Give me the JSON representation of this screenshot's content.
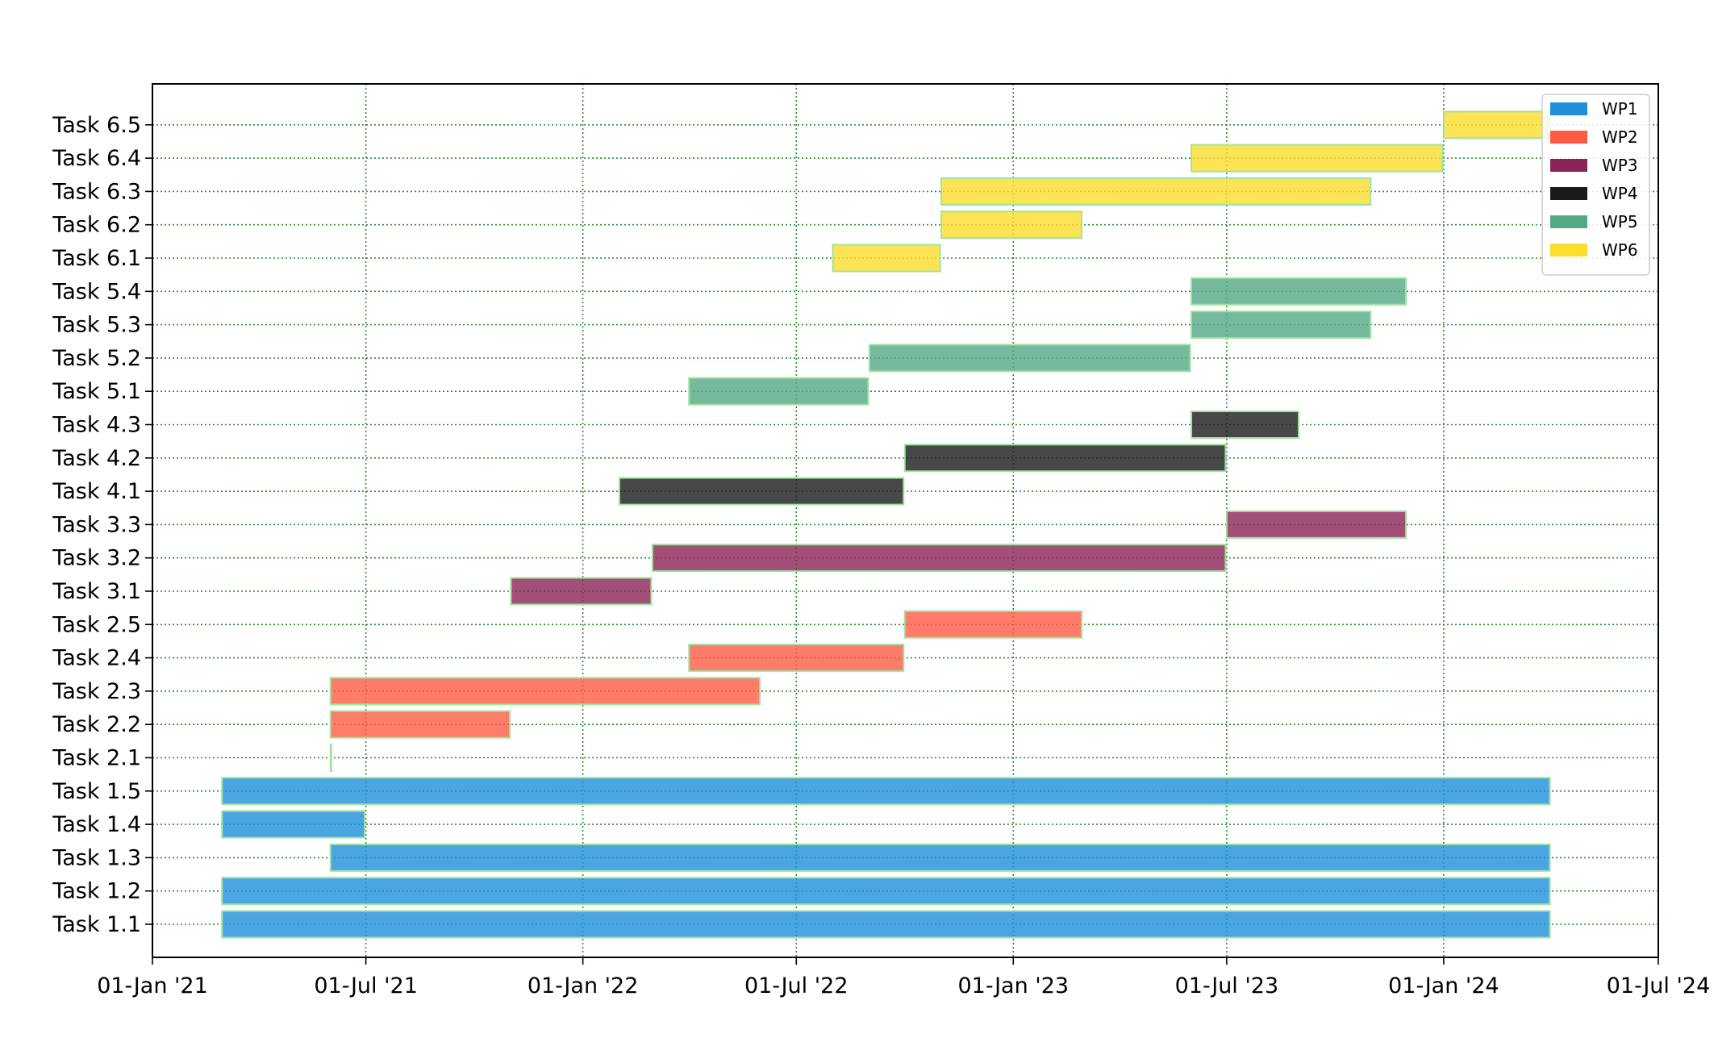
{
  "chart_data": {
    "type": "gantt",
    "title": "",
    "xlabel": "",
    "ylabel": "",
    "x_axis": {
      "type": "date",
      "range": [
        "2021-01-01",
        "2024-07-01"
      ],
      "ticks": [
        {
          "date": "2021-01-01",
          "label": "01-Jan '21"
        },
        {
          "date": "2021-07-01",
          "label": "01-Jul '21"
        },
        {
          "date": "2022-01-01",
          "label": "01-Jan '22"
        },
        {
          "date": "2022-07-01",
          "label": "01-Jul '22"
        },
        {
          "date": "2023-01-01",
          "label": "01-Jan '23"
        },
        {
          "date": "2023-07-01",
          "label": "01-Jul '23"
        },
        {
          "date": "2024-01-01",
          "label": "01-Jan '24"
        },
        {
          "date": "2024-07-01",
          "label": "01-Jul '24"
        }
      ]
    },
    "grid": {
      "vertical": true,
      "horizontal": true,
      "style": "dotted",
      "color": "#2e8b2e"
    },
    "legend": {
      "placement": "top-right"
    },
    "work_packages": [
      {
        "name": "WP1",
        "color": "#1f8fdc"
      },
      {
        "name": "WP2",
        "color": "#ff5a45"
      },
      {
        "name": "WP3",
        "color": "#8b2456"
      },
      {
        "name": "WP4",
        "color": "#1a1a1a"
      },
      {
        "name": "WP5",
        "color": "#55a886"
      },
      {
        "name": "WP6",
        "color": "#fcdc2c"
      }
    ],
    "tasks": [
      {
        "label": "Task 1.1",
        "wp": "WP1",
        "start": "2021-03-01",
        "end": "2024-03-31"
      },
      {
        "label": "Task 1.2",
        "wp": "WP1",
        "start": "2021-03-01",
        "end": "2024-03-31"
      },
      {
        "label": "Task 1.3",
        "wp": "WP1",
        "start": "2021-06-01",
        "end": "2024-03-31"
      },
      {
        "label": "Task 1.4",
        "wp": "WP1",
        "start": "2021-03-01",
        "end": "2021-06-30"
      },
      {
        "label": "Task 1.5",
        "wp": "WP1",
        "start": "2021-03-01",
        "end": "2024-03-31"
      },
      {
        "label": "Task 2.1",
        "wp": "WP2",
        "start": "2021-06-01",
        "end": "2021-06-01"
      },
      {
        "label": "Task 2.2",
        "wp": "WP2",
        "start": "2021-06-01",
        "end": "2021-10-31"
      },
      {
        "label": "Task 2.3",
        "wp": "WP2",
        "start": "2021-06-01",
        "end": "2022-05-31"
      },
      {
        "label": "Task 2.4",
        "wp": "WP2",
        "start": "2022-04-01",
        "end": "2022-09-30"
      },
      {
        "label": "Task 2.5",
        "wp": "WP2",
        "start": "2022-10-01",
        "end": "2023-02-28"
      },
      {
        "label": "Task 3.1",
        "wp": "WP3",
        "start": "2021-11-01",
        "end": "2022-02-28"
      },
      {
        "label": "Task 3.2",
        "wp": "WP3",
        "start": "2022-03-01",
        "end": "2023-06-30"
      },
      {
        "label": "Task 3.3",
        "wp": "WP3",
        "start": "2023-07-01",
        "end": "2023-11-30"
      },
      {
        "label": "Task 4.1",
        "wp": "WP4",
        "start": "2022-02-01",
        "end": "2022-09-30"
      },
      {
        "label": "Task 4.2",
        "wp": "WP4",
        "start": "2022-10-01",
        "end": "2023-06-30"
      },
      {
        "label": "Task 4.3",
        "wp": "WP4",
        "start": "2023-06-01",
        "end": "2023-08-31"
      },
      {
        "label": "Task 5.1",
        "wp": "WP5",
        "start": "2022-04-01",
        "end": "2022-08-31"
      },
      {
        "label": "Task 5.2",
        "wp": "WP5",
        "start": "2022-09-01",
        "end": "2023-05-31"
      },
      {
        "label": "Task 5.3",
        "wp": "WP5",
        "start": "2023-06-01",
        "end": "2023-10-31"
      },
      {
        "label": "Task 5.4",
        "wp": "WP5",
        "start": "2023-06-01",
        "end": "2023-11-30"
      },
      {
        "label": "Task 6.1",
        "wp": "WP6",
        "start": "2022-08-01",
        "end": "2022-10-31"
      },
      {
        "label": "Task 6.2",
        "wp": "WP6",
        "start": "2022-11-01",
        "end": "2023-02-28"
      },
      {
        "label": "Task 6.3",
        "wp": "WP6",
        "start": "2022-11-01",
        "end": "2023-10-31"
      },
      {
        "label": "Task 6.4",
        "wp": "WP6",
        "start": "2023-06-01",
        "end": "2023-12-31"
      },
      {
        "label": "Task 6.5",
        "wp": "WP6",
        "start": "2024-01-01",
        "end": "2024-03-31"
      }
    ]
  }
}
